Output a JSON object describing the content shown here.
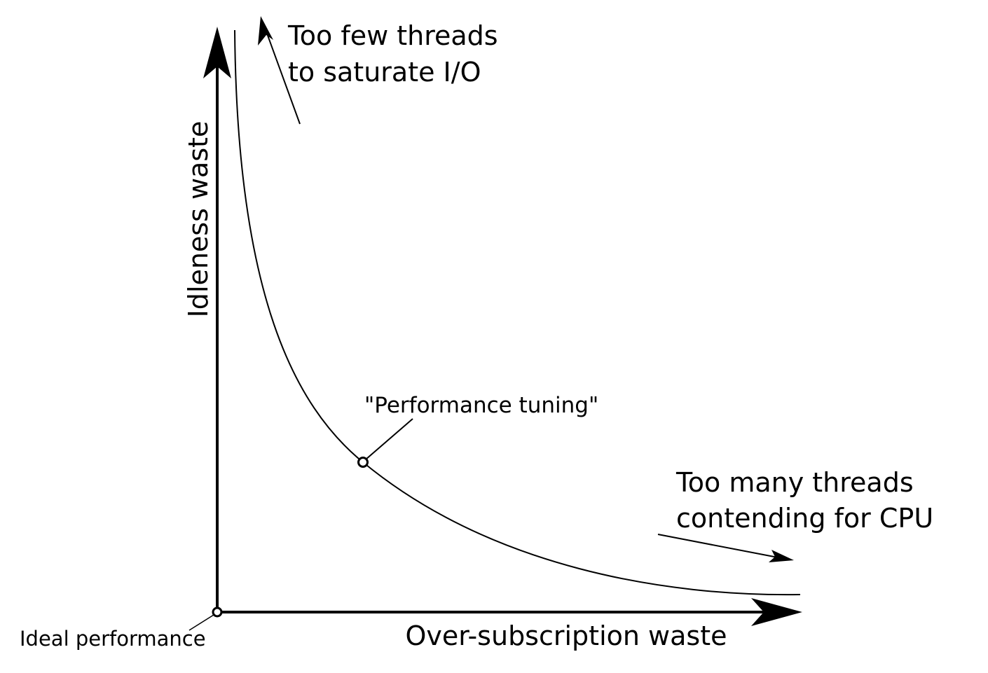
{
  "diagram": {
    "axes": {
      "x_label": "Over-subscription waste",
      "y_label": "Idleness waste"
    },
    "annotations": {
      "too_few_line1": "Too few threads",
      "too_few_line2": "to saturate I/O",
      "too_many_line1": "Too many threads",
      "too_many_line2": "contending for CPU",
      "performance_tuning": "\"Performance tuning\"",
      "ideal_performance": "Ideal performance"
    },
    "colors": {
      "ink": "#000000",
      "background": "#ffffff"
    }
  }
}
